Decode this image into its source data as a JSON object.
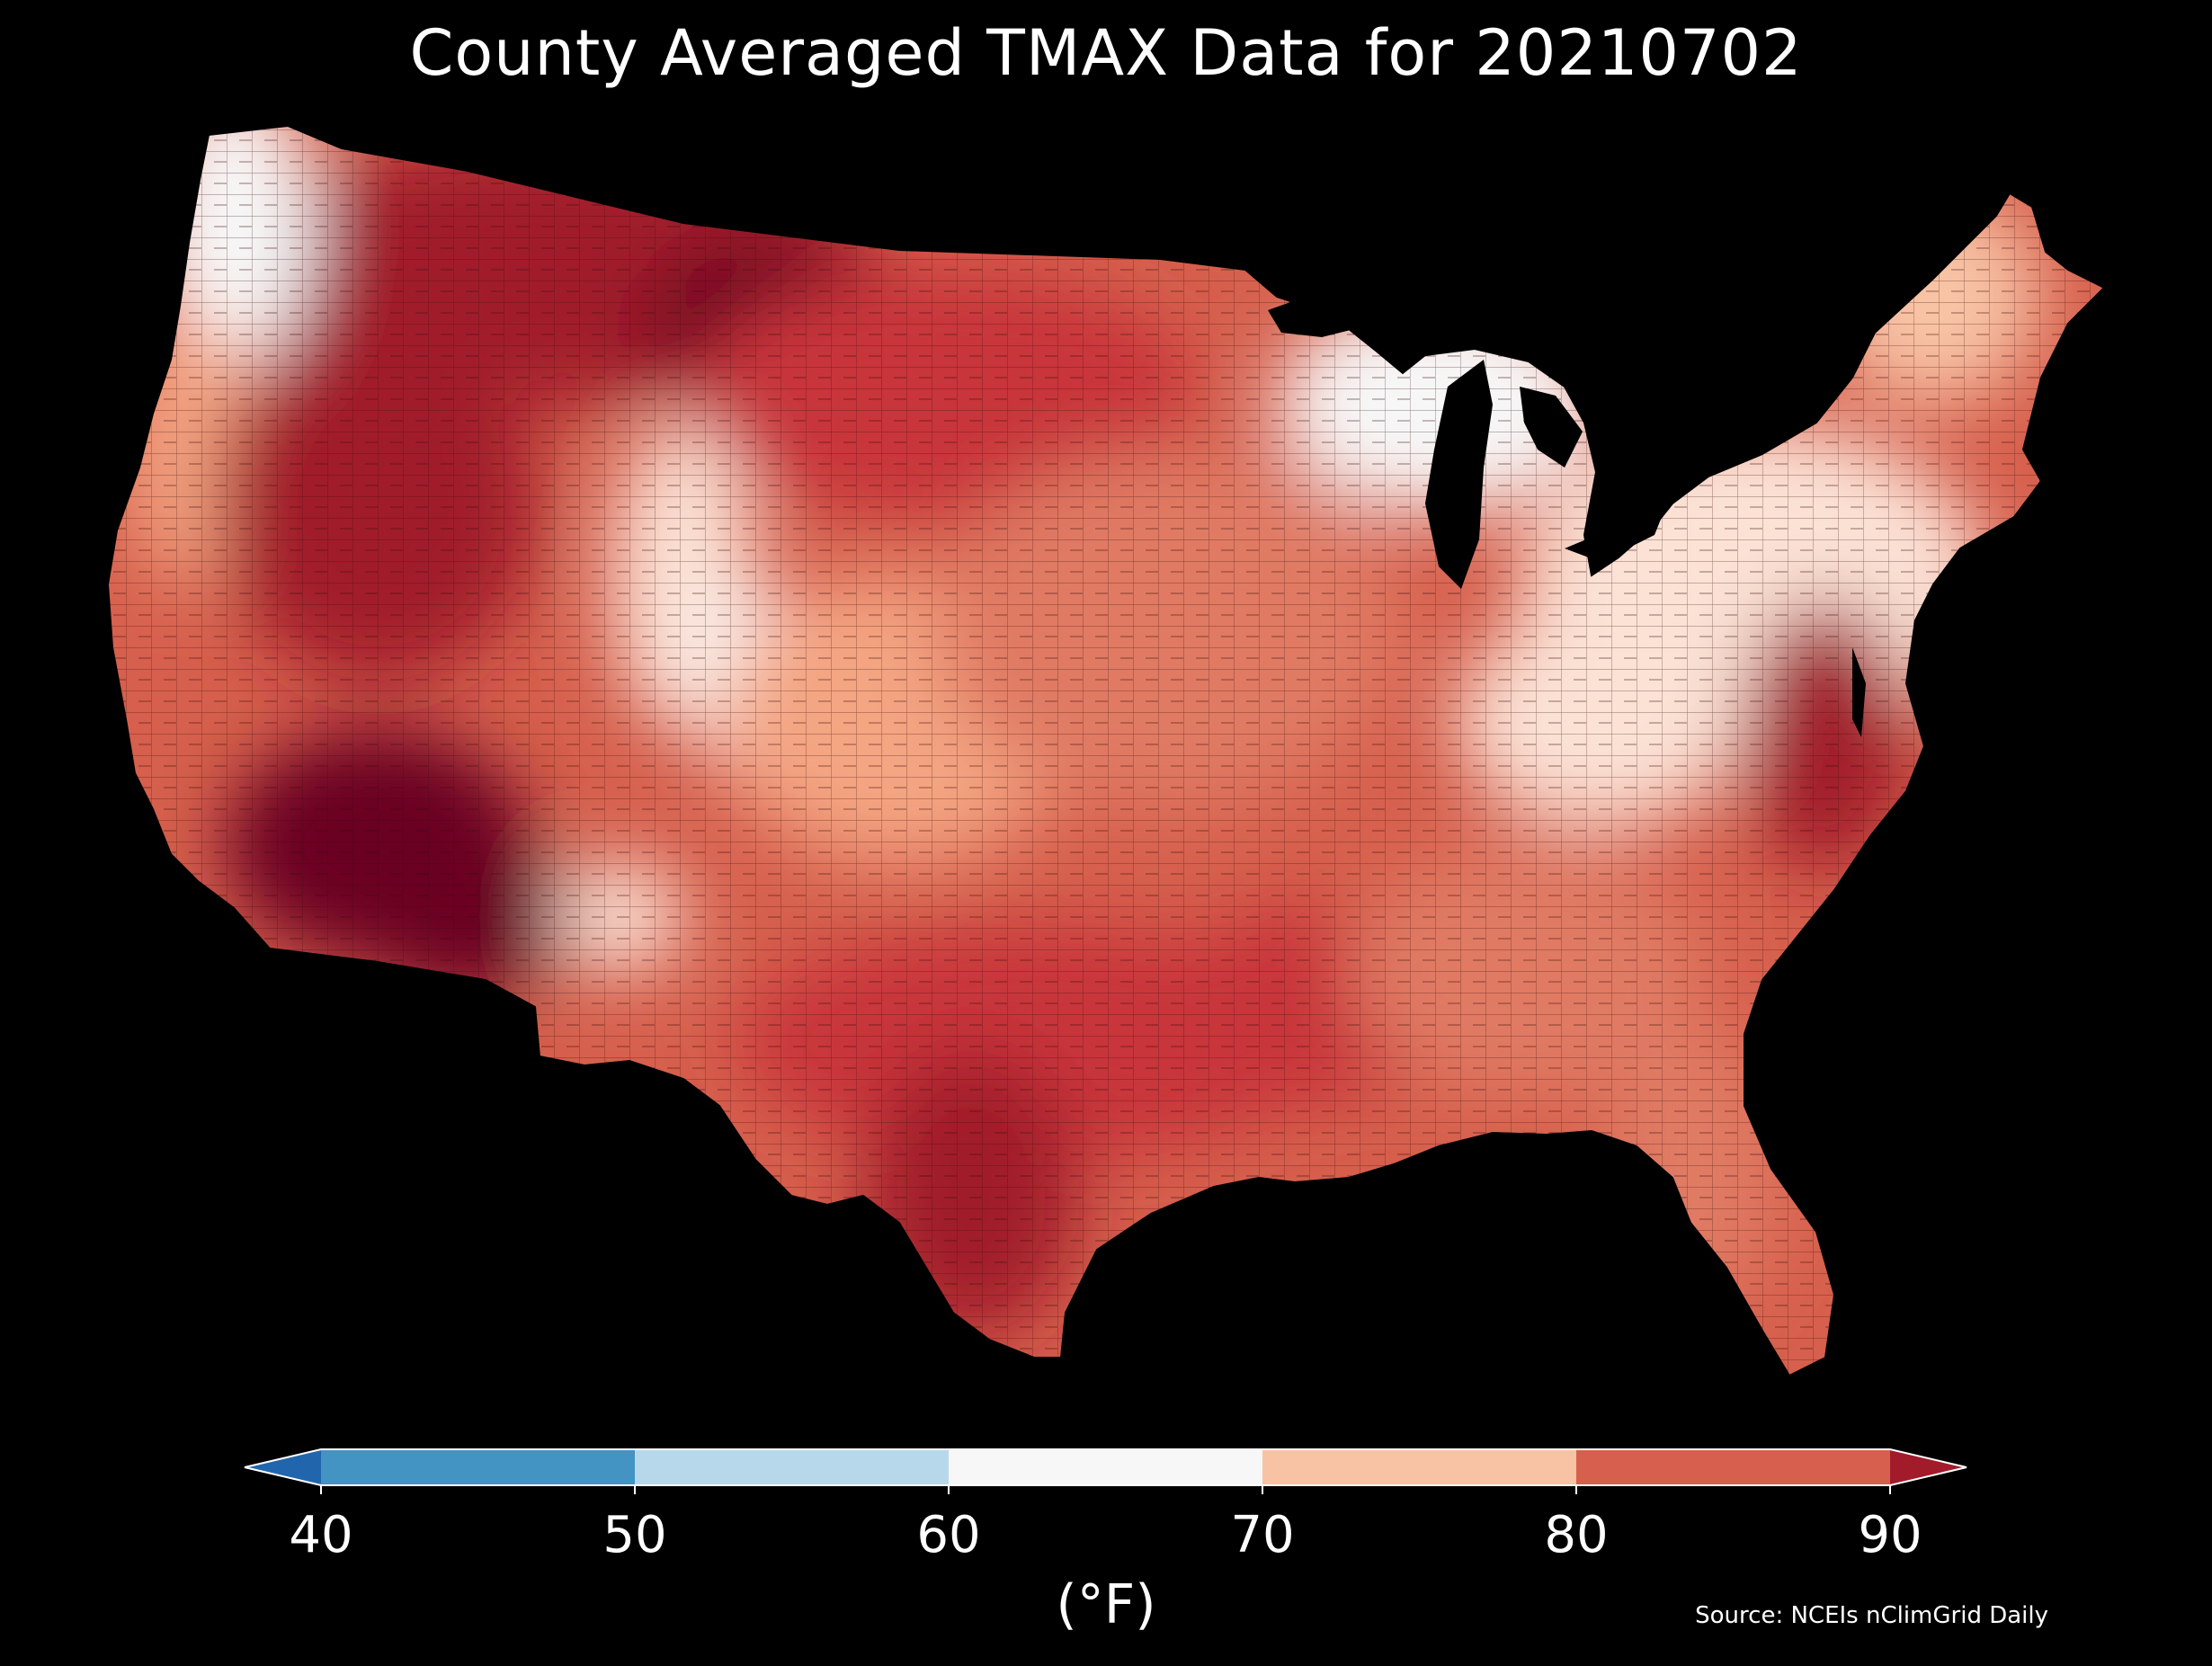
{
  "title": "County Averaged TMAX Data for 20210702",
  "colorbar": {
    "ticks": [
      "40",
      "50",
      "60",
      "70",
      "80",
      "90"
    ],
    "unit": "(°F)",
    "bins": [
      {
        "from": 40,
        "to": 50,
        "color": "#4393c3"
      },
      {
        "from": 50,
        "to": 60,
        "color": "#b7d8ea"
      },
      {
        "from": 60,
        "to": 70,
        "color": "#f7f7f7"
      },
      {
        "from": 70,
        "to": 80,
        "color": "#f8c3a5"
      },
      {
        "from": 80,
        "to": 90,
        "color": "#d6604d"
      }
    ],
    "under_color": "#2166ac",
    "over_color": "#a11b2b"
  },
  "source": "Source: NCEIs nClimGrid Daily",
  "map": {
    "region": "Contiguous United States counties",
    "background": "#000000",
    "fill_range_colors": [
      "#f7f7f7",
      "#fbe2d5",
      "#f4a582",
      "#e07a64",
      "#c8363a",
      "#a11b2b",
      "#6b0020"
    ]
  }
}
